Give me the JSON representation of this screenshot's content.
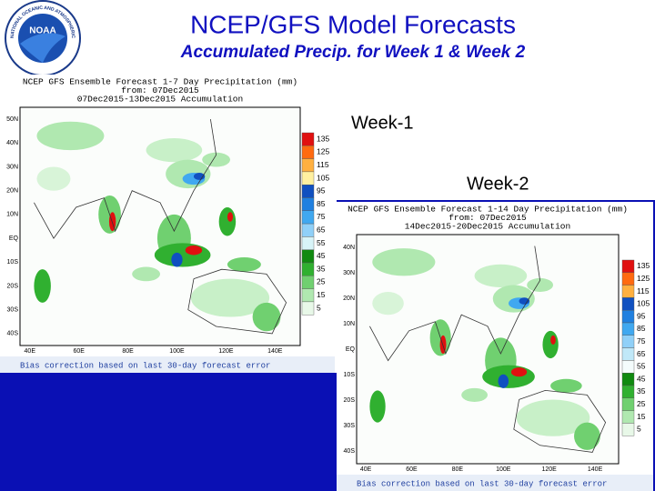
{
  "header": {
    "title": "NCEP/GFS Model Forecasts",
    "subtitle": "Accumulated Precip. for Week 1 & Week 2",
    "logo_text": "NOAA",
    "logo_ring": "NATIONAL OCEANIC AND ATMOSPHERIC ADMINISTRATION"
  },
  "maps": [
    {
      "label": "Week-1",
      "header": [
        "NCEP GFS Ensemble Forecast 1-7 Day Precipitation (mm)",
        "from: 07Dec2015",
        "07Dec2015-13Dec2015 Accumulation"
      ],
      "footer": "Bias correction based on last 30-day forecast error",
      "lat_labels": [
        "50N",
        "40N",
        "30N",
        "20N",
        "10N",
        "EQ",
        "10S",
        "20S",
        "30S",
        "40S"
      ],
      "lon_labels": [
        "40E",
        "60E",
        "80E",
        "100E",
        "120E",
        "140E"
      ],
      "legend": [
        {
          "label": "135",
          "color": "#e01010"
        },
        {
          "label": "125",
          "color": "#ff6a10"
        },
        {
          "label": "115",
          "color": "#ffb040"
        },
        {
          "label": "105",
          "color": "#fff0a0"
        },
        {
          "label": "95",
          "color": "#1050c0"
        },
        {
          "label": "85",
          "color": "#2080e0"
        },
        {
          "label": "75",
          "color": "#40a8f0"
        },
        {
          "label": "65",
          "color": "#90d0f8"
        },
        {
          "label": "55",
          "color": "#d8f4f8"
        },
        {
          "label": "45",
          "color": "#108a10"
        },
        {
          "label": "35",
          "color": "#30b030"
        },
        {
          "label": "25",
          "color": "#70d070"
        },
        {
          "label": "15",
          "color": "#b0e8b0"
        },
        {
          "label": "5",
          "color": "#e8f8e8"
        }
      ]
    },
    {
      "label": "Week-2",
      "header": [
        "NCEP GFS Ensemble Forecast 1-14 Day Precipitation (mm)",
        "from: 07Dec2015",
        "14Dec2015-20Dec2015 Accumulation"
      ],
      "footer": "Bias correction based on last 30-day forecast error",
      "lat_labels": [
        "40N",
        "30N",
        "20N",
        "10N",
        "EQ",
        "10S",
        "20S",
        "30S",
        "40S"
      ],
      "lon_labels": [
        "40E",
        "60E",
        "80E",
        "100E",
        "120E",
        "140E"
      ],
      "legend": [
        {
          "label": "135",
          "color": "#e01010"
        },
        {
          "label": "125",
          "color": "#ff6a10"
        },
        {
          "label": "115",
          "color": "#ffb040"
        },
        {
          "label": "105",
          "color": "#1050c0"
        },
        {
          "label": "95",
          "color": "#2080e0"
        },
        {
          "label": "85",
          "color": "#40a8f0"
        },
        {
          "label": "75",
          "color": "#90d0f8"
        },
        {
          "label": "65",
          "color": "#c0e8f8"
        },
        {
          "label": "55",
          "color": "#f4fcfc"
        },
        {
          "label": "45",
          "color": "#108a10"
        },
        {
          "label": "35",
          "color": "#30b030"
        },
        {
          "label": "25",
          "color": "#70d070"
        },
        {
          "label": "15",
          "color": "#b0e8b0"
        },
        {
          "label": "5",
          "color": "#e8f8e8"
        }
      ]
    }
  ]
}
